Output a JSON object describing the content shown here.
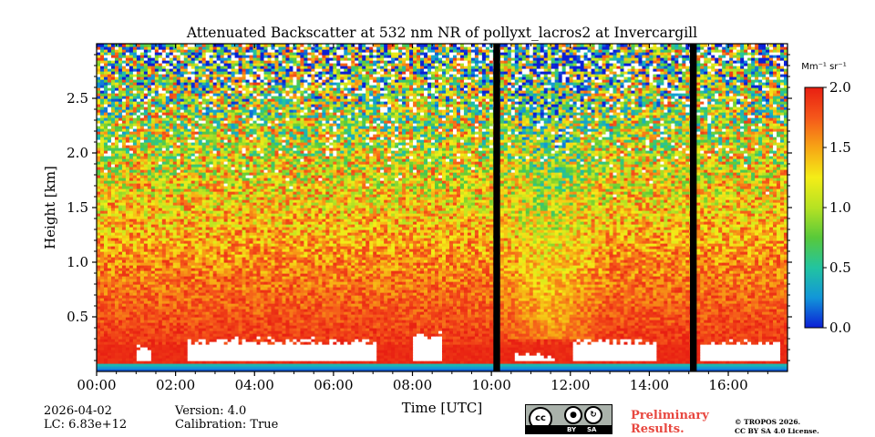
{
  "chart_data": {
    "type": "heatmap",
    "title": "Attenuated Backscatter at 532 nm NR of pollyxt_lacros2 at Invercargill",
    "xlabel": "Time [UTC]",
    "ylabel": "Height [km]",
    "xlim_hours": [
      0,
      17.5
    ],
    "ylim_km": [
      0,
      3.0
    ],
    "x_ticks": [
      {
        "value": 0,
        "label": "00:00"
      },
      {
        "value": 2,
        "label": "02:00"
      },
      {
        "value": 4,
        "label": "04:00"
      },
      {
        "value": 6,
        "label": "06:00"
      },
      {
        "value": 8,
        "label": "08:00"
      },
      {
        "value": 10,
        "label": "10:00"
      },
      {
        "value": 12,
        "label": "12:00"
      },
      {
        "value": 14,
        "label": "14:00"
      },
      {
        "value": 16,
        "label": "16:00"
      }
    ],
    "y_ticks": [
      {
        "value": 0.5,
        "label": "0.5"
      },
      {
        "value": 1.0,
        "label": "1.0"
      },
      {
        "value": 1.5,
        "label": "1.5"
      },
      {
        "value": 2.0,
        "label": "2.0"
      },
      {
        "value": 2.5,
        "label": "2.5"
      }
    ],
    "colorbar": {
      "unit_label": "Mm⁻¹ sr⁻¹",
      "range": [
        0.0,
        2.0
      ],
      "ticks": [
        {
          "value": 0.0,
          "label": "0.0"
        },
        {
          "value": 0.5,
          "label": "0.5"
        },
        {
          "value": 1.0,
          "label": "1.0"
        },
        {
          "value": 1.5,
          "label": "1.5"
        },
        {
          "value": 2.0,
          "label": "2.0"
        }
      ],
      "colormap": [
        "#0b1fd6",
        "#1296d9",
        "#22c4a0",
        "#58c93a",
        "#b6e223",
        "#f4ed17",
        "#f7a515",
        "#f5571a",
        "#e81f12"
      ]
    },
    "data_gaps_hours": [
      [
        10.05,
        10.22
      ],
      [
        15.03,
        15.2
      ]
    ],
    "overlap_zone_km": [
      0.0,
      0.08
    ],
    "near_surface_layer_km": [
      0.08,
      0.25
    ],
    "saturated_regions": [
      {
        "start_h": 1.05,
        "end_h": 1.35,
        "top_km": 0.25
      },
      {
        "start_h": 2.3,
        "end_h": 7.1,
        "top_km": 0.32
      },
      {
        "start_h": 8.0,
        "end_h": 8.75,
        "top_km": 0.38
      },
      {
        "start_h": 10.6,
        "end_h": 11.6,
        "top_km": 0.18
      },
      {
        "start_h": 12.1,
        "end_h": 14.2,
        "top_km": 0.32
      },
      {
        "start_h": 15.3,
        "end_h": 17.35,
        "top_km": 0.3
      }
    ],
    "mean_profile": [
      {
        "height_km": 0.25,
        "value": 1.9
      },
      {
        "height_km": 0.6,
        "value": 1.75
      },
      {
        "height_km": 1.0,
        "value": 1.6
      },
      {
        "height_km": 1.5,
        "value": 1.35
      },
      {
        "height_km": 2.0,
        "value": 1.15
      },
      {
        "height_km": 2.5,
        "value": 0.95
      },
      {
        "height_km": 2.9,
        "value": 0.75
      }
    ]
  },
  "footer": {
    "date": "2026-04-02",
    "lc": "LC: 6.83e+12",
    "version": "Version: 4.0",
    "calibration": "Calibration: True",
    "preliminary_line1": "Preliminary",
    "preliminary_line2": "Results.",
    "copyright_line1": "© TROPOS 2026.",
    "copyright_line2": "CC BY SA 4.0 License.",
    "license_badge": {
      "cc": "cc",
      "by": "BY",
      "sa": "SA"
    }
  }
}
